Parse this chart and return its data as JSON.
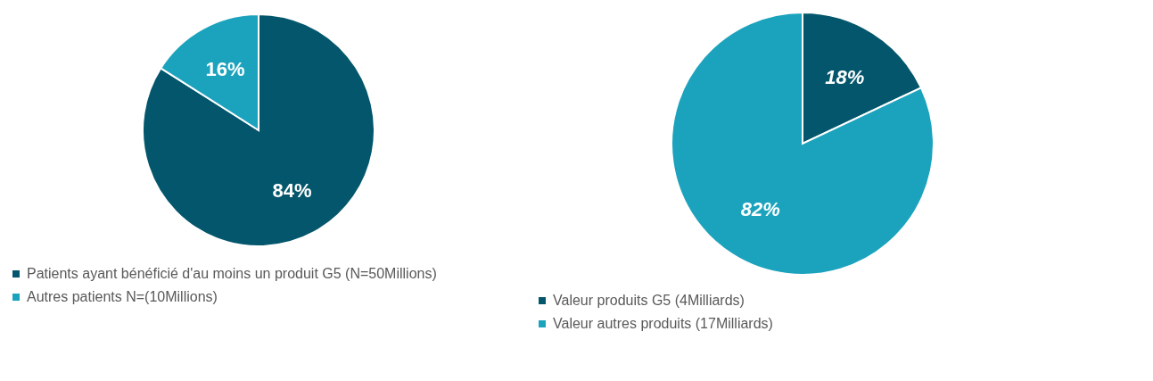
{
  "chart_data": [
    {
      "type": "pie",
      "categories": [
        "Patients ayant bénéficié d'au moins un produit G5 (N=50Millions)",
        "Autres patients N=(10Millions)"
      ],
      "values": [
        84,
        16
      ],
      "colors": [
        "#03566b",
        "#1ba3bd"
      ],
      "value_labels": [
        "84%",
        "16%"
      ],
      "legend": "bottom"
    },
    {
      "type": "pie",
      "categories": [
        "Valeur produits G5 (4Milliards)",
        "Valeur autres produits (17Milliards)"
      ],
      "values": [
        18,
        82
      ],
      "colors": [
        "#03566b",
        "#1ba3bd"
      ],
      "value_labels": [
        "18%",
        "82%"
      ],
      "legend": "bottom"
    }
  ]
}
